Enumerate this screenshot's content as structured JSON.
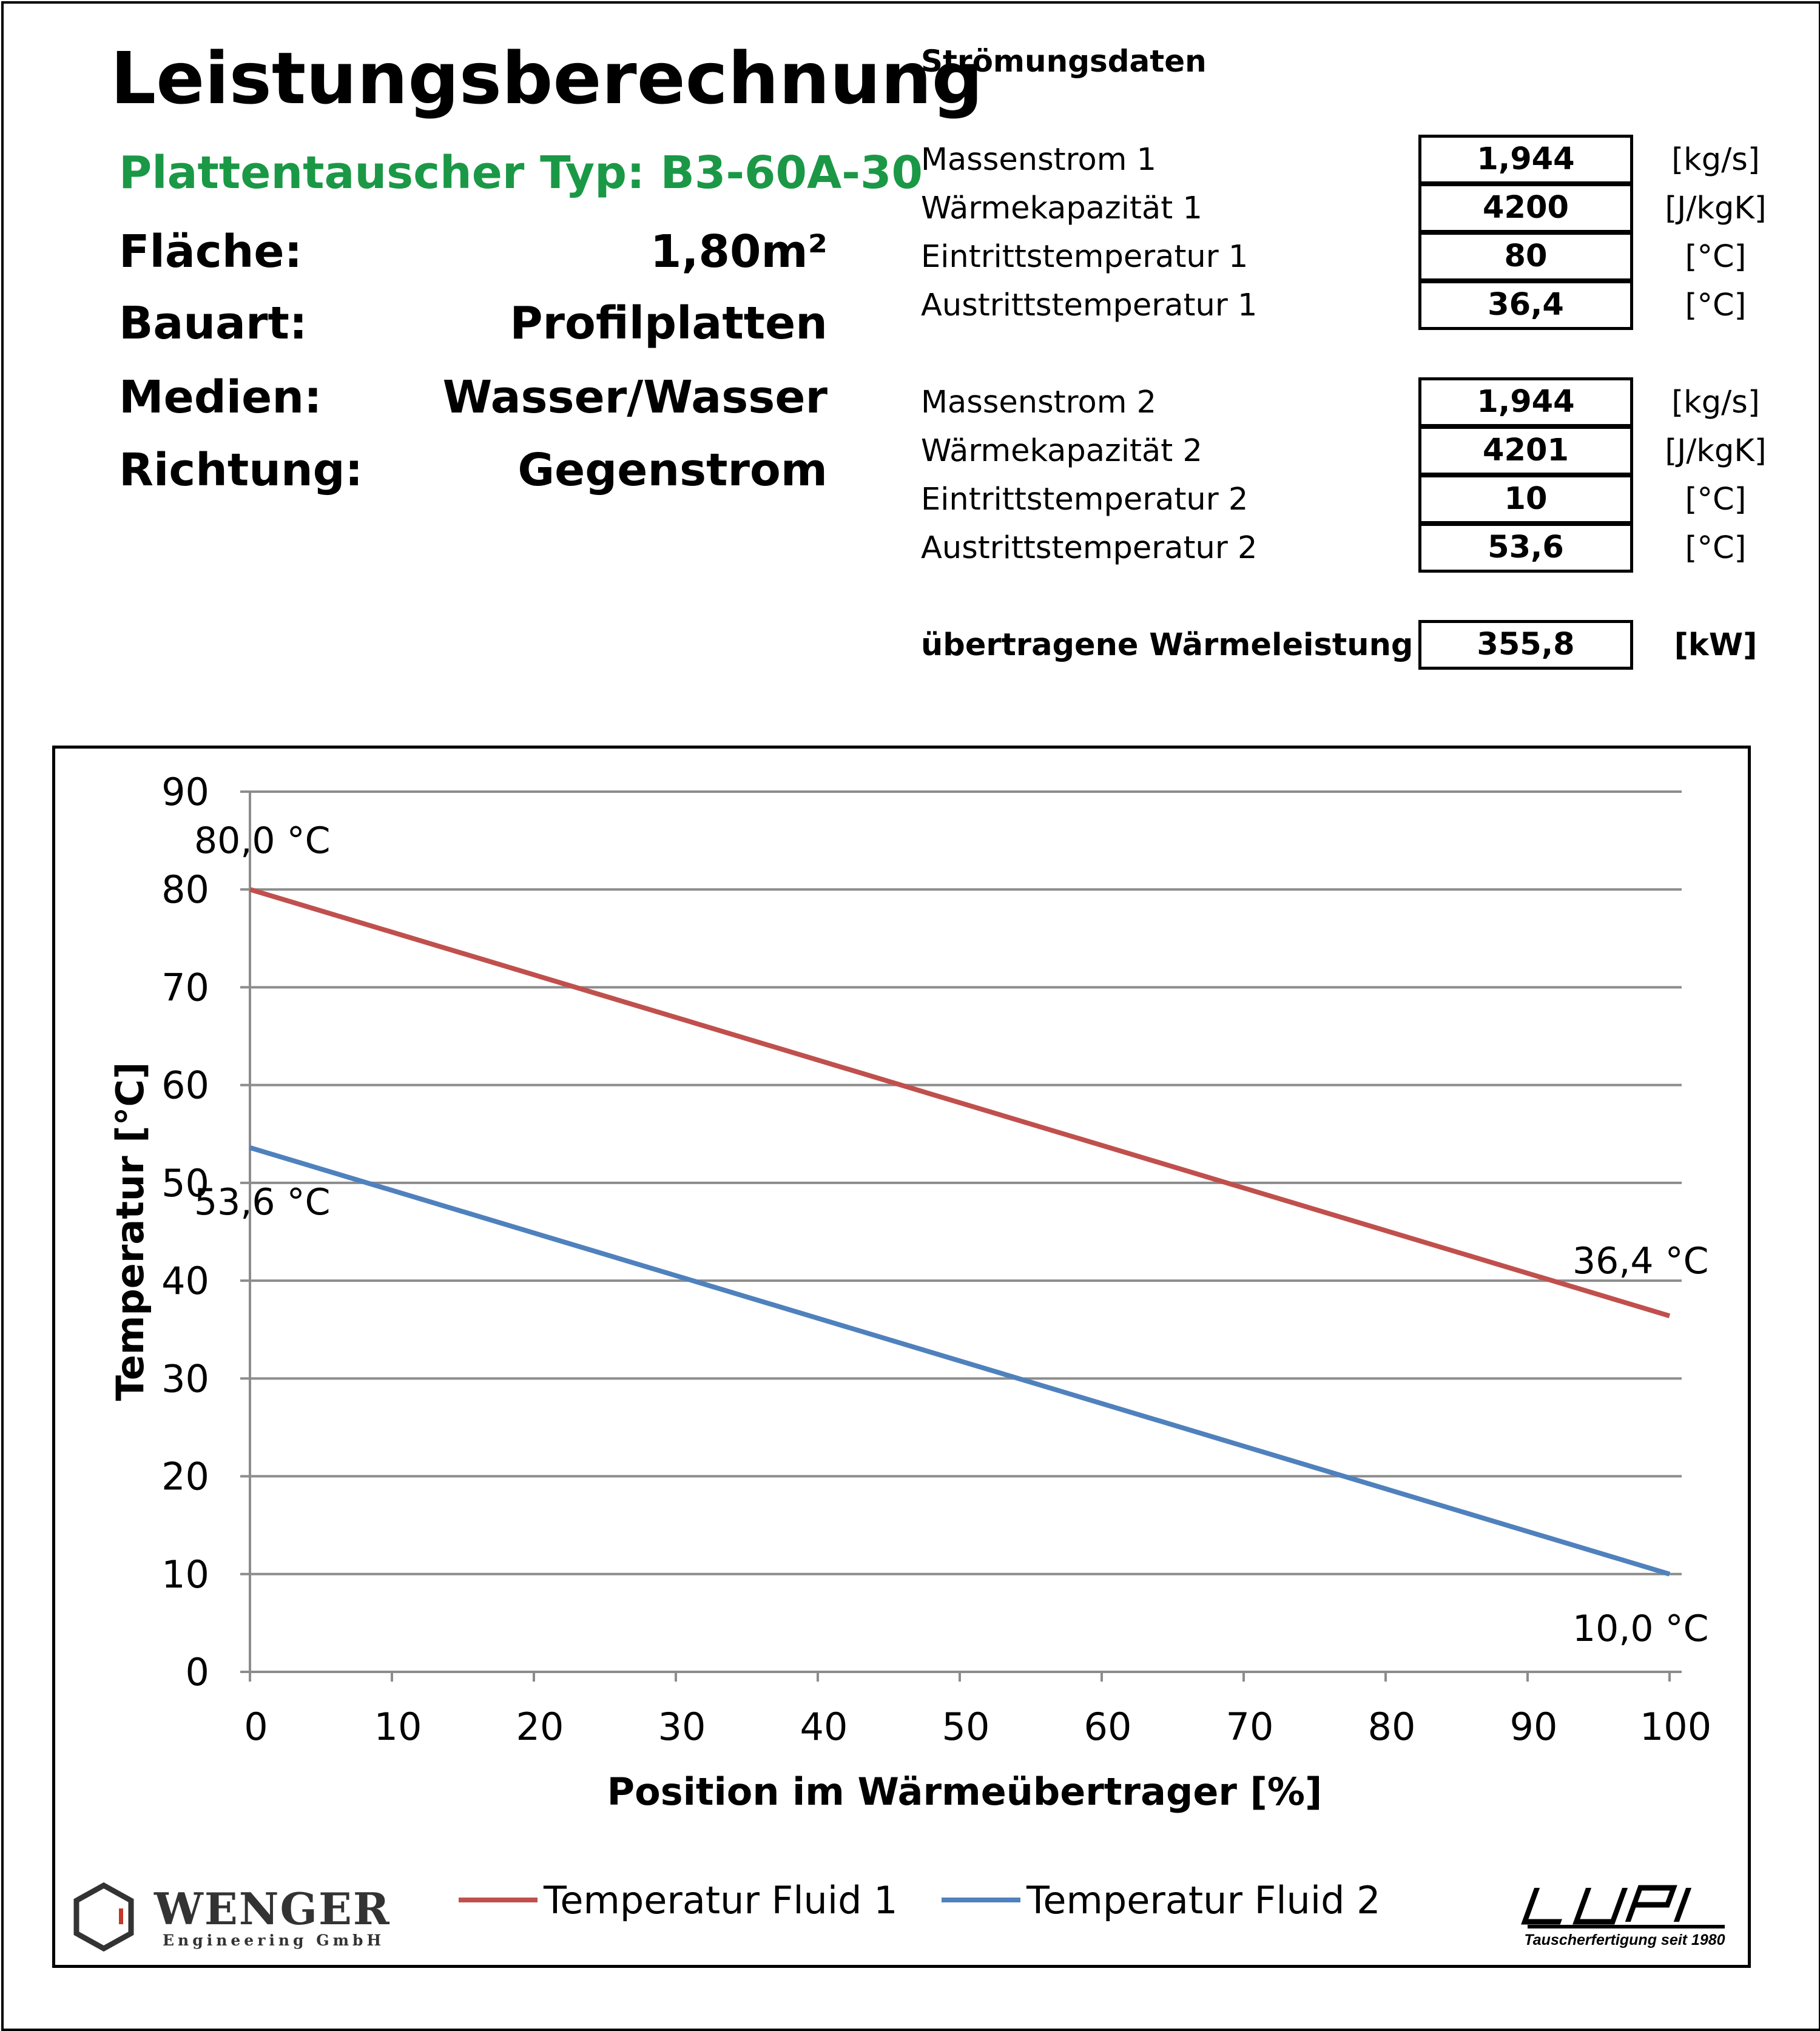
{
  "header": {
    "title": "Leistungsberechnung",
    "subtitle": "Plattentauscher Typ:  B3-60A-30",
    "subtitle_color": "#1a9846",
    "properties": [
      {
        "key": "Fläche:",
        "value": "1,80m²"
      },
      {
        "key": "Bauart:",
        "value": "Profilplatten"
      },
      {
        "key": "Medien:",
        "value": "Wasser/Wasser"
      },
      {
        "key": "Richtung:",
        "value": "Gegenstrom"
      }
    ]
  },
  "flow": {
    "title": "Strömungsdaten",
    "fluid1": [
      {
        "label": "Massenstrom 1",
        "value": "1,944",
        "unit": "[kg/s]"
      },
      {
        "label": "Wärmekapazität 1",
        "value": "4200",
        "unit": "[J/kgK]"
      },
      {
        "label": "Eintrittstemperatur 1",
        "value": "80",
        "unit": "[°C]"
      },
      {
        "label": "Austrittstemperatur 1",
        "value": "36,4",
        "unit": "[°C]"
      }
    ],
    "fluid2": [
      {
        "label": "Massenstrom 2",
        "value": "1,944",
        "unit": "[kg/s]"
      },
      {
        "label": "Wärmekapazität 2",
        "value": "4201",
        "unit": "[J/kgK]"
      },
      {
        "label": "Eintrittstemperatur 2",
        "value": "10",
        "unit": "[°C]"
      },
      {
        "label": "Austrittstemperatur 2",
        "value": "53,6",
        "unit": "[°C]"
      }
    ],
    "power": {
      "label": "übertragene Wärmeleistung",
      "value": "355,8",
      "unit": "[kW]"
    }
  },
  "chart_data": {
    "type": "line",
    "title": "",
    "xlabel": "Position im Wärmeübertrager [%]",
    "ylabel": "Temperatur [°C]",
    "xlim": [
      0,
      100
    ],
    "ylim": [
      0,
      90
    ],
    "xticks": [
      "0",
      "10",
      "20",
      "30",
      "40",
      "50",
      "60",
      "70",
      "80",
      "90",
      "100"
    ],
    "yticks": [
      "0",
      "10",
      "20",
      "30",
      "40",
      "50",
      "60",
      "70",
      "80",
      "90"
    ],
    "grid": "horizontal",
    "legend_position": "bottom",
    "series": [
      {
        "name": "Temperatur Fluid 1",
        "color": "#c0504d",
        "x": [
          0,
          100
        ],
        "y": [
          80.0,
          36.4
        ],
        "labels": [
          "80,0 °C",
          "36,4 °C"
        ]
      },
      {
        "name": "Temperatur Fluid 2",
        "color": "#4f81bd",
        "x": [
          0,
          100
        ],
        "y": [
          53.6,
          10.0
        ],
        "labels": [
          "53,6 °C",
          "10,0 °C"
        ]
      }
    ]
  },
  "logos": {
    "wenger_name": "WENGER",
    "wenger_sub": "Engineering GmbH",
    "lupi_name": "LUPI",
    "lupi_sub": "Tauscherfertigung seit 1980"
  }
}
